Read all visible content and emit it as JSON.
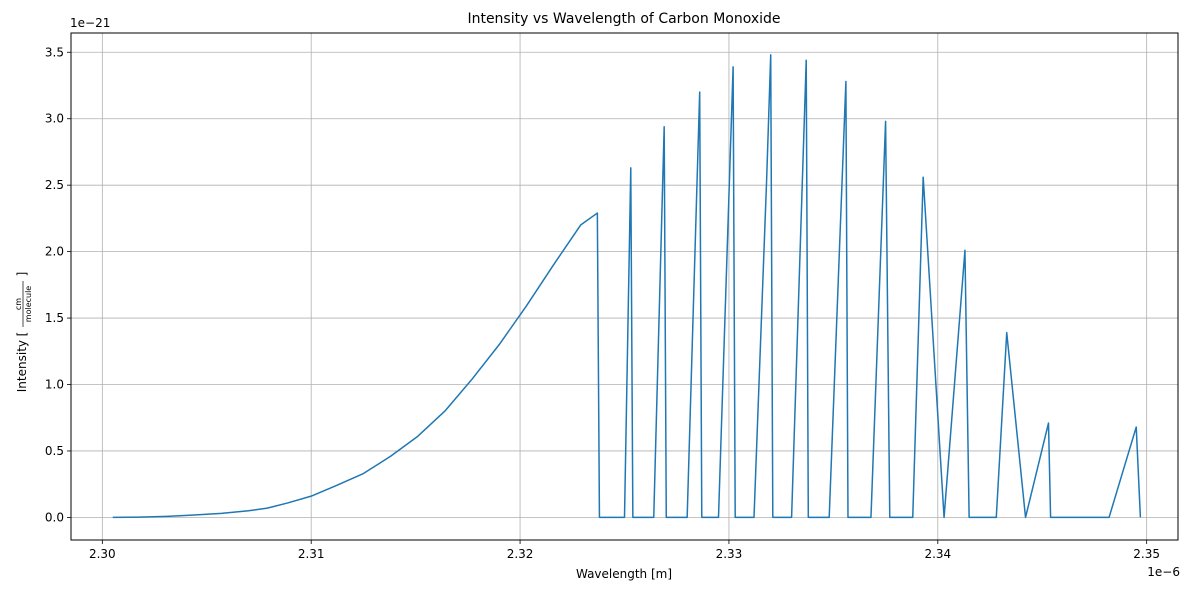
{
  "chart_data": {
    "type": "line",
    "title": "Intensity vs Wavelength of Carbon Monoxide",
    "xlabel": "Wavelength [m]",
    "ylabel": {
      "prefix": "Intensity",
      "numerator": "cm",
      "denominator": "molecule"
    },
    "x_offset_label": "1e−6",
    "y_offset_label": "1e−21",
    "xlim": [
      2.2985,
      2.3515
    ],
    "ylim": [
      -0.17,
      3.645
    ],
    "x_ticks": [
      2.3,
      2.31,
      2.32,
      2.33,
      2.34,
      2.35
    ],
    "x_tick_labels": [
      "2.30",
      "2.31",
      "2.32",
      "2.33",
      "2.34",
      "2.35"
    ],
    "y_ticks": [
      0.0,
      0.5,
      1.0,
      1.5,
      2.0,
      2.5,
      3.0,
      3.5
    ],
    "y_tick_labels": [
      "0.0",
      "0.5",
      "1.0",
      "1.5",
      "2.0",
      "2.5",
      "3.0",
      "3.5"
    ],
    "grid": true,
    "series": [
      {
        "color": "#1f77b4",
        "x": [
          2.3005,
          2.3018,
          2.3031,
          2.3044,
          2.3057,
          2.307,
          2.3079,
          2.3089,
          2.31,
          2.3112,
          2.3125,
          2.3138,
          2.3151,
          2.3164,
          2.3177,
          2.319,
          2.3203,
          2.3216,
          2.3229,
          2.3237,
          2.3238,
          2.325,
          2.3253,
          2.3254,
          2.3264,
          2.3269,
          2.327,
          2.328,
          2.3286,
          2.3287,
          2.3295,
          2.3302,
          2.3303,
          2.3312,
          2.3318,
          2.332,
          2.3321,
          2.333,
          2.3337,
          2.3338,
          2.3348,
          2.3356,
          2.3357,
          2.3368,
          2.3375,
          2.3377,
          2.3388,
          2.3393,
          2.3403,
          2.3413,
          2.3415,
          2.3428,
          2.3433,
          2.3442,
          2.3453,
          2.3454,
          2.3482,
          2.3495,
          2.3497
        ],
        "y": [
          0.0,
          0.002,
          0.008,
          0.018,
          0.03,
          0.05,
          0.07,
          0.11,
          0.16,
          0.24,
          0.33,
          0.46,
          0.61,
          0.8,
          1.04,
          1.3,
          1.59,
          1.9,
          2.2,
          2.29,
          0.0,
          0.0,
          2.63,
          0.0,
          0.0,
          2.94,
          0.0,
          0.0,
          3.2,
          0.0,
          0.0,
          3.39,
          0.0,
          0.0,
          2.52,
          3.48,
          0.0,
          0.0,
          3.44,
          0.0,
          0.0,
          3.28,
          0.0,
          0.0,
          2.98,
          0.0,
          0.0,
          2.56,
          0.0,
          2.01,
          0.0,
          0.0,
          1.39,
          0.0,
          0.71,
          0.0,
          0.0,
          0.68,
          0.0
        ]
      }
    ]
  }
}
